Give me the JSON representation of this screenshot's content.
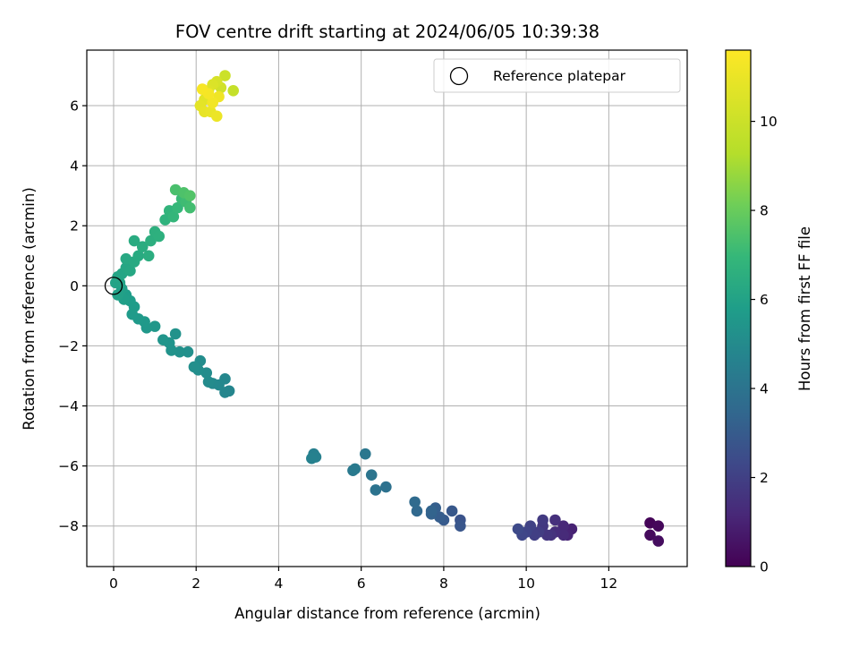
{
  "chart_data": {
    "type": "scatter",
    "title": "FOV centre drift starting at 2024/06/05 10:39:38",
    "xlabel": "Angular distance from reference (arcmin)",
    "ylabel": "Rotation from reference (arcmin)",
    "xlim": [
      -0.65,
      13.9
    ],
    "ylim": [
      -9.35,
      7.85
    ],
    "x_ticks": [
      0,
      2,
      4,
      6,
      8,
      10,
      12
    ],
    "y_ticks": [
      -8,
      -6,
      -4,
      -2,
      0,
      2,
      4,
      6
    ],
    "grid": true,
    "legend": {
      "position": "top-right",
      "entries": [
        "Reference platepar"
      ]
    },
    "reference_point": {
      "x": 0,
      "y": 0
    },
    "colorbar": {
      "label": "Hours from first FF file",
      "range": [
        0,
        11.6
      ],
      "ticks": [
        0,
        2,
        4,
        6,
        8,
        10
      ],
      "colormap": "viridis"
    },
    "points": [
      {
        "x": 13.0,
        "y": -7.9,
        "t": 0.1
      },
      {
        "x": 13.2,
        "y": -8.0,
        "t": 0.2
      },
      {
        "x": 13.0,
        "y": -8.3,
        "t": 0.3
      },
      {
        "x": 13.2,
        "y": -8.5,
        "t": 0.4
      },
      {
        "x": 11.1,
        "y": -8.1,
        "t": 1.1
      },
      {
        "x": 11.0,
        "y": -8.3,
        "t": 1.2
      },
      {
        "x": 10.9,
        "y": -8.0,
        "t": 1.3
      },
      {
        "x": 10.9,
        "y": -8.3,
        "t": 1.4
      },
      {
        "x": 10.7,
        "y": -8.2,
        "t": 1.5
      },
      {
        "x": 10.7,
        "y": -7.8,
        "t": 1.6
      },
      {
        "x": 10.6,
        "y": -8.3,
        "t": 1.7
      },
      {
        "x": 10.5,
        "y": -8.3,
        "t": 1.8
      },
      {
        "x": 10.4,
        "y": -8.0,
        "t": 1.9
      },
      {
        "x": 10.4,
        "y": -7.8,
        "t": 2.0
      },
      {
        "x": 10.3,
        "y": -8.2,
        "t": 2.1
      },
      {
        "x": 10.2,
        "y": -8.3,
        "t": 2.2
      },
      {
        "x": 10.1,
        "y": -8.0,
        "t": 2.3
      },
      {
        "x": 10.0,
        "y": -8.2,
        "t": 2.4
      },
      {
        "x": 9.9,
        "y": -8.3,
        "t": 2.5
      },
      {
        "x": 9.8,
        "y": -8.1,
        "t": 2.6
      },
      {
        "x": 8.4,
        "y": -7.8,
        "t": 3.0
      },
      {
        "x": 8.4,
        "y": -8.0,
        "t": 3.1
      },
      {
        "x": 8.2,
        "y": -7.5,
        "t": 3.2
      },
      {
        "x": 8.0,
        "y": -7.8,
        "t": 3.3
      },
      {
        "x": 7.9,
        "y": -7.7,
        "t": 3.4
      },
      {
        "x": 7.8,
        "y": -7.4,
        "t": 3.5
      },
      {
        "x": 7.7,
        "y": -7.6,
        "t": 3.6
      },
      {
        "x": 7.7,
        "y": -7.5,
        "t": 3.7
      },
      {
        "x": 7.35,
        "y": -7.5,
        "t": 3.9
      },
      {
        "x": 7.3,
        "y": -7.2,
        "t": 4.0
      },
      {
        "x": 6.6,
        "y": -6.7,
        "t": 4.3
      },
      {
        "x": 6.35,
        "y": -6.8,
        "t": 4.4
      },
      {
        "x": 6.25,
        "y": -6.3,
        "t": 4.5
      },
      {
        "x": 6.1,
        "y": -5.6,
        "t": 4.6
      },
      {
        "x": 5.8,
        "y": -6.15,
        "t": 4.7
      },
      {
        "x": 5.85,
        "y": -6.1,
        "t": 4.75
      },
      {
        "x": 4.85,
        "y": -5.6,
        "t": 5.0
      },
      {
        "x": 4.9,
        "y": -5.7,
        "t": 5.05
      },
      {
        "x": 4.8,
        "y": -5.75,
        "t": 5.1
      },
      {
        "x": 2.8,
        "y": -3.5,
        "t": 5.3
      },
      {
        "x": 2.7,
        "y": -3.55,
        "t": 5.35
      },
      {
        "x": 2.7,
        "y": -3.1,
        "t": 5.4
      },
      {
        "x": 2.55,
        "y": -3.3,
        "t": 5.45
      },
      {
        "x": 2.4,
        "y": -3.25,
        "t": 5.5
      },
      {
        "x": 2.3,
        "y": -3.2,
        "t": 5.55
      },
      {
        "x": 2.25,
        "y": -2.9,
        "t": 5.6
      },
      {
        "x": 2.1,
        "y": -2.5,
        "t": 5.65
      },
      {
        "x": 2.05,
        "y": -2.8,
        "t": 5.7
      },
      {
        "x": 1.95,
        "y": -2.7,
        "t": 5.75
      },
      {
        "x": 1.8,
        "y": -2.2,
        "t": 5.8
      },
      {
        "x": 1.6,
        "y": -2.2,
        "t": 5.85
      },
      {
        "x": 1.5,
        "y": -1.6,
        "t": 5.9
      },
      {
        "x": 1.4,
        "y": -2.15,
        "t": 5.95
      },
      {
        "x": 1.35,
        "y": -1.9,
        "t": 6.0
      },
      {
        "x": 1.2,
        "y": -1.8,
        "t": 6.05
      },
      {
        "x": 1.0,
        "y": -1.35,
        "t": 6.1
      },
      {
        "x": 0.8,
        "y": -1.4,
        "t": 6.15
      },
      {
        "x": 0.75,
        "y": -1.2,
        "t": 6.2
      },
      {
        "x": 0.6,
        "y": -1.1,
        "t": 6.25
      },
      {
        "x": 0.45,
        "y": -0.95,
        "t": 6.3
      },
      {
        "x": 0.5,
        "y": -0.7,
        "t": 6.35
      },
      {
        "x": 0.4,
        "y": -0.5,
        "t": 6.4
      },
      {
        "x": 0.3,
        "y": -0.3,
        "t": 6.45
      },
      {
        "x": 0.25,
        "y": -0.45,
        "t": 6.5
      },
      {
        "x": 0.2,
        "y": -0.1,
        "t": 6.55
      },
      {
        "x": 0.1,
        "y": -0.3,
        "t": 6.6
      },
      {
        "x": 0.15,
        "y": 0.1,
        "t": 6.65
      },
      {
        "x": 0.05,
        "y": 0.1,
        "t": 6.7
      },
      {
        "x": 0.1,
        "y": 0.3,
        "t": 6.75
      },
      {
        "x": 0.2,
        "y": 0.4,
        "t": 6.8
      },
      {
        "x": 0.3,
        "y": 0.6,
        "t": 6.85
      },
      {
        "x": 0.4,
        "y": 0.5,
        "t": 6.9
      },
      {
        "x": 0.3,
        "y": 0.9,
        "t": 6.95
      },
      {
        "x": 0.5,
        "y": 0.8,
        "t": 7.0
      },
      {
        "x": 0.6,
        "y": 1.0,
        "t": 7.05
      },
      {
        "x": 0.5,
        "y": 1.5,
        "t": 7.1
      },
      {
        "x": 0.7,
        "y": 1.3,
        "t": 7.15
      },
      {
        "x": 0.85,
        "y": 1.0,
        "t": 7.2
      },
      {
        "x": 0.9,
        "y": 1.5,
        "t": 7.25
      },
      {
        "x": 1.0,
        "y": 1.8,
        "t": 7.3
      },
      {
        "x": 1.1,
        "y": 1.65,
        "t": 7.35
      },
      {
        "x": 1.25,
        "y": 2.2,
        "t": 7.45
      },
      {
        "x": 1.35,
        "y": 2.5,
        "t": 7.55
      },
      {
        "x": 1.45,
        "y": 2.3,
        "t": 7.65
      },
      {
        "x": 1.55,
        "y": 2.6,
        "t": 7.75
      },
      {
        "x": 1.65,
        "y": 2.9,
        "t": 7.85
      },
      {
        "x": 1.75,
        "y": 2.8,
        "t": 7.95
      },
      {
        "x": 1.85,
        "y": 2.6,
        "t": 8.05
      },
      {
        "x": 1.5,
        "y": 3.2,
        "t": 8.2
      },
      {
        "x": 1.7,
        "y": 3.1,
        "t": 8.3
      },
      {
        "x": 1.85,
        "y": 3.0,
        "t": 8.4
      },
      {
        "x": 2.9,
        "y": 6.5,
        "t": 10.6
      },
      {
        "x": 2.7,
        "y": 7.0,
        "t": 10.7
      },
      {
        "x": 2.6,
        "y": 6.6,
        "t": 10.8
      },
      {
        "x": 2.5,
        "y": 6.8,
        "t": 10.9
      },
      {
        "x": 2.4,
        "y": 6.7,
        "t": 11.0
      },
      {
        "x": 2.3,
        "y": 6.5,
        "t": 11.05
      },
      {
        "x": 2.2,
        "y": 6.2,
        "t": 11.1
      },
      {
        "x": 2.1,
        "y": 6.0,
        "t": 11.15
      },
      {
        "x": 2.2,
        "y": 5.8,
        "t": 11.2
      },
      {
        "x": 2.35,
        "y": 5.8,
        "t": 11.25
      },
      {
        "x": 2.5,
        "y": 5.65,
        "t": 11.3
      },
      {
        "x": 2.55,
        "y": 6.3,
        "t": 11.35
      },
      {
        "x": 2.4,
        "y": 6.1,
        "t": 11.4
      },
      {
        "x": 2.3,
        "y": 6.4,
        "t": 11.45
      },
      {
        "x": 2.15,
        "y": 6.55,
        "t": 11.5
      }
    ]
  }
}
